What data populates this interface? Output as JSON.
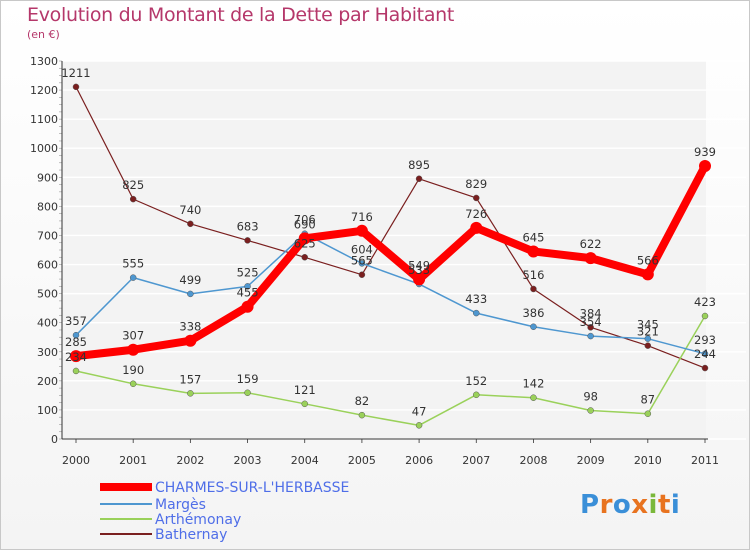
{
  "title": "Evolution du Montant de la Dette par Habitant",
  "subtitle": "(en €)",
  "logo": {
    "letters": [
      "P",
      "r",
      "o",
      "x",
      "i",
      "t",
      "i"
    ],
    "colors": [
      "#3a8fd8",
      "#e8731f",
      "#3a8fd8",
      "#e8731f",
      "#7ab83a",
      "#e8731f",
      "#3a8fd8"
    ]
  },
  "chart_data": {
    "type": "line",
    "title": "Evolution du Montant de la Dette par Habitant",
    "subtitle": "(en €)",
    "x": [
      "2000",
      "2001",
      "2002",
      "2003",
      "2004",
      "2005",
      "2006",
      "2007",
      "2008",
      "2009",
      "2010",
      "2011"
    ],
    "ylim": [
      0,
      1300
    ],
    "yticks": [
      0,
      100,
      200,
      300,
      400,
      500,
      600,
      700,
      800,
      900,
      1000,
      1100,
      1200,
      1300
    ],
    "grid": true,
    "legend_position": "bottom-left",
    "series": [
      {
        "name": "CHARMES-SUR-L'HERBASSE",
        "color": "#ff0000",
        "width": 8,
        "marker": 6,
        "values": [
          285,
          307,
          338,
          455,
          690,
          716,
          549,
          726,
          645,
          622,
          566,
          939
        ],
        "labels": [
          "285",
          "307",
          "338",
          "455",
          "690",
          "716",
          "549",
          "726",
          "645",
          "622",
          "566",
          "939"
        ]
      },
      {
        "name": "Margès",
        "color": "#4e97d0",
        "width": 1.5,
        "marker": 3,
        "values": [
          357,
          555,
          499,
          525,
          706,
          604,
          533,
          433,
          386,
          354,
          345,
          293
        ],
        "labels": [
          "357",
          "555",
          "499",
          "525",
          "706",
          "604",
          "533",
          "433",
          "386",
          "354",
          "345",
          "293"
        ]
      },
      {
        "name": "Arthémonay",
        "color": "#9ad15a",
        "width": 1.5,
        "marker": 3,
        "values": [
          234,
          190,
          157,
          159,
          121,
          82,
          47,
          152,
          142,
          98,
          87,
          423
        ],
        "labels": [
          "234",
          "190",
          "157",
          "159",
          "121",
          "82",
          "47",
          "152",
          "142",
          "98",
          "87",
          "423"
        ]
      },
      {
        "name": "Bathernay",
        "color": "#7a1f1f",
        "width": 1.2,
        "marker": 3,
        "values": [
          1211,
          825,
          740,
          683,
          625,
          565,
          895,
          829,
          516,
          384,
          321,
          244
        ],
        "labels": [
          "1211",
          "825",
          "740",
          "683",
          "625",
          "565",
          "895",
          "829",
          "516",
          "384",
          "321",
          "244"
        ]
      }
    ]
  }
}
